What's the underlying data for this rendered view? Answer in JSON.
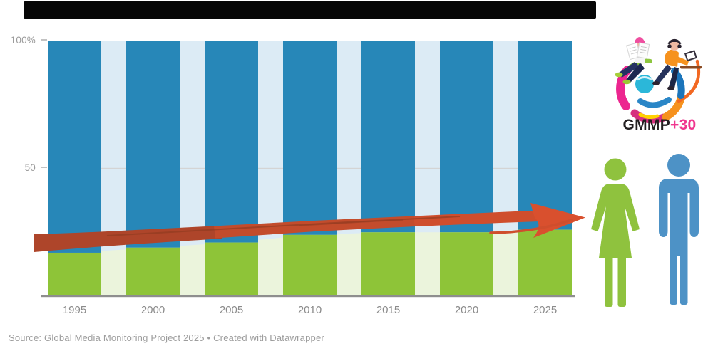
{
  "window": {
    "top_bar": ""
  },
  "chart_data": {
    "type": "bar",
    "subtype": "100-percent-stacked-columns",
    "title": "",
    "categories": [
      "1995",
      "2000",
      "2005",
      "2010",
      "2015",
      "2020",
      "2025"
    ],
    "series": [
      {
        "name": "Women",
        "color": "#8ec438",
        "values": [
          17,
          19,
          21,
          24,
          25,
          25,
          26
        ]
      },
      {
        "name": "Men",
        "color": "#2787b8",
        "values": [
          83,
          81,
          79,
          76,
          75,
          75,
          74
        ]
      }
    ],
    "ylim": [
      0,
      100
    ],
    "y_tick_labels": [
      "100%",
      "50"
    ],
    "x_tick_labels": [
      "1995",
      "2000",
      "2005",
      "2010",
      "2015",
      "2020",
      "2025"
    ],
    "grid": "single light gridline at 50, visible between columns",
    "legend_position": "none",
    "annotation": "hand-drawn red upward trend arrow from 1995 to 2025"
  },
  "y_axis": {
    "label_100": "100%",
    "label_50": "50"
  },
  "source": {
    "text": "Source: Global Media Monitoring Project 2025 • Created with Datawrapper"
  },
  "logo": {
    "text_black": "GMMP",
    "text_accent": "+30",
    "accent_color": "#f0368f"
  },
  "icons": {
    "female_pictogram_color": "#8fc23e",
    "male_pictogram_color": "#4d92c6"
  },
  "colors": {
    "bar_blue": "#2787b8",
    "bar_green": "#8ec438",
    "bg_blue": "#dcebf5",
    "bg_green": "#ebf4dc",
    "gridline": "#d4d4d4",
    "baseline": "#8e8e8e",
    "arrow_red": "#c04b2a",
    "arrow_red_dark": "#a6422a",
    "arrow_red_bright": "#d9502e"
  }
}
